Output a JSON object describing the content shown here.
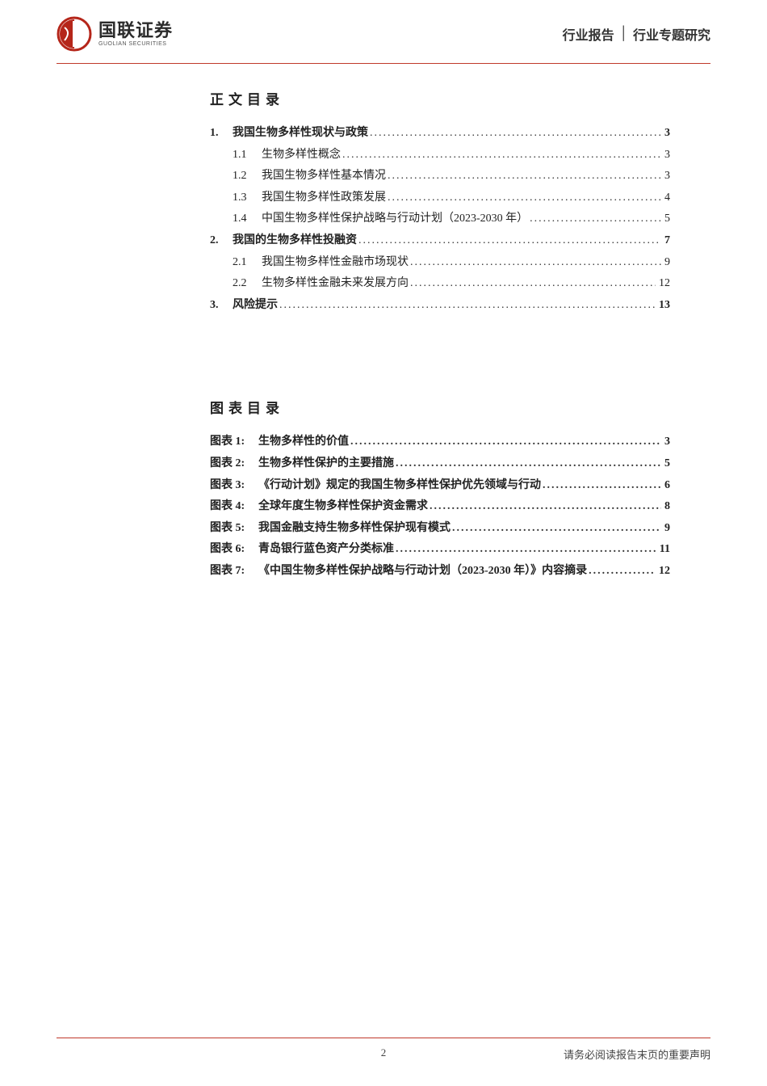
{
  "colors": {
    "accent": "#c0392b",
    "text": "#222222",
    "logo_red": "#b5261a",
    "logo_dark": "#2b2b2b"
  },
  "header": {
    "logo_cn": "国联证券",
    "logo_en": "GUOLIAN SECURITIES",
    "category_left": "行业报告",
    "category_right": "行业专题研究"
  },
  "toc_heading": "正文目录",
  "toc": [
    {
      "num": "1.",
      "title": "我国生物多样性现状与政策",
      "page": "3",
      "level": 1
    },
    {
      "num": "1.1",
      "title": "生物多样性概念",
      "page": "3",
      "level": 2
    },
    {
      "num": "1.2",
      "title": "我国生物多样性基本情况",
      "page": "3",
      "level": 2
    },
    {
      "num": "1.3",
      "title": "我国生物多样性政策发展",
      "page": "4",
      "level": 2
    },
    {
      "num": "1.4",
      "title": "中国生物多样性保护战略与行动计划（2023-2030 年）",
      "page": "5",
      "level": 2
    },
    {
      "num": "2.",
      "title": "我国的生物多样性投融资",
      "page": "7",
      "level": 1
    },
    {
      "num": "2.1",
      "title": "我国生物多样性金融市场现状",
      "page": "9",
      "level": 2
    },
    {
      "num": "2.2",
      "title": "生物多样性金融未来发展方向",
      "page": "12",
      "level": 2
    },
    {
      "num": "3.",
      "title": "风险提示",
      "page": "13",
      "level": 1
    }
  ],
  "figures_heading": "图表目录",
  "figures": [
    {
      "label": "图表 1:",
      "title": "生物多样性的价值",
      "page": "3"
    },
    {
      "label": "图表 2:",
      "title": "生物多样性保护的主要措施",
      "page": "5"
    },
    {
      "label": "图表 3:",
      "title": "《行动计划》规定的我国生物多样性保护优先领域与行动",
      "page": "6"
    },
    {
      "label": "图表 4:",
      "title": "全球年度生物多样性保护资金需求",
      "page": "8"
    },
    {
      "label": "图表 5:",
      "title": "我国金融支持生物多样性保护现有模式",
      "page": "9"
    },
    {
      "label": "图表 6:",
      "title": "青岛银行蓝色资产分类标准",
      "page": "11"
    },
    {
      "label": "图表 7:",
      "title": "《中国生物多样性保护战略与行动计划（2023-2030 年）》内容摘录",
      "page": "12"
    }
  ],
  "footer": {
    "page_number": "2",
    "disclaimer": "请务必阅读报告末页的重要声明"
  }
}
